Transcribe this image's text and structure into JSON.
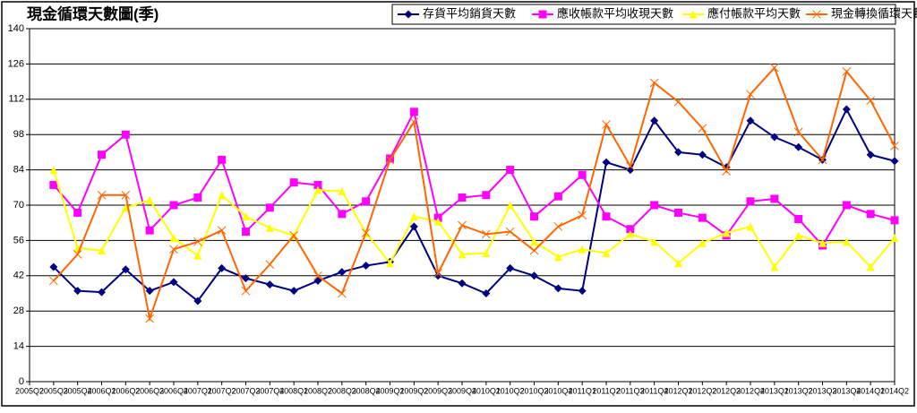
{
  "chart_data": {
    "type": "line",
    "title": "現金循環天數圖(季)",
    "categories": [
      "2005Q2",
      "2005Q3",
      "2005Q4",
      "2006Q1",
      "2006Q2",
      "2006Q3",
      "2006Q4",
      "2007Q1",
      "2007Q2",
      "2007Q3",
      "2007Q4",
      "2008Q1",
      "2008Q2",
      "2008Q3",
      "2008Q4",
      "2009Q1",
      "2009Q2",
      "2009Q3",
      "2009Q4",
      "2010Q1",
      "2010Q2",
      "2010Q3",
      "2010Q4",
      "2011Q1",
      "2011Q2",
      "2011Q3",
      "2011Q4",
      "2012Q1",
      "2012Q2",
      "2012Q3",
      "2012Q4",
      "2013Q1",
      "2013Q2",
      "2013Q3",
      "2013Q4",
      "2014Q1",
      "2014Q2"
    ],
    "series": [
      {
        "name": "存貨平均銷貨天數",
        "color": "#000080",
        "values": [
          null,
          45.5,
          36,
          35.5,
          44.5,
          36,
          39.5,
          32,
          45,
          41,
          38.5,
          36,
          40,
          43.5,
          46,
          47.5,
          61.5,
          42,
          39,
          35,
          45,
          42,
          37,
          36,
          87,
          84,
          103.5,
          91,
          90,
          85,
          103.5,
          97,
          93,
          88,
          108,
          90,
          87.5
        ]
      },
      {
        "name": "應收帳款平均收現天數",
        "color": "#ff00ff",
        "values": [
          null,
          78,
          67,
          90,
          98,
          60,
          70,
          73,
          88,
          59.5,
          69,
          79,
          78,
          66.5,
          71.5,
          88.5,
          107,
          65,
          73,
          74,
          84,
          65.5,
          73.5,
          82,
          65.5,
          60.5,
          70,
          67,
          65,
          58,
          71.5,
          72.5,
          64.5,
          54,
          70,
          66.5,
          64
        ]
      },
      {
        "name": "應付帳款平均天數",
        "color": "#ffff00",
        "values": [
          null,
          84,
          53,
          52,
          69,
          72,
          57,
          50,
          74,
          65.5,
          61,
          58,
          76,
          75.5,
          59,
          47,
          65.5,
          63.5,
          50.5,
          51,
          70,
          55.5,
          49.5,
          52.5,
          51,
          58.5,
          55.5,
          47,
          55,
          59,
          61.5,
          45.5,
          58,
          55,
          55.5,
          45.5,
          57
        ]
      },
      {
        "name": "現金轉換循環天數",
        "color": "#ff6600",
        "values": [
          null,
          40,
          50.5,
          74,
          74,
          25,
          52.5,
          55.5,
          60,
          36,
          46.5,
          58,
          42,
          35,
          59,
          88,
          103,
          43,
          62,
          58.5,
          59.5,
          52,
          61.5,
          66,
          102,
          85.5,
          118.5,
          111,
          100.5,
          83.5,
          114,
          124.5,
          99,
          88,
          123,
          111.5,
          93.5
        ]
      }
    ],
    "ylim": [
      0,
      140
    ],
    "yticks": [
      0,
      14,
      28,
      42,
      56,
      70,
      84,
      98,
      112,
      126,
      140
    ],
    "grid": true
  }
}
